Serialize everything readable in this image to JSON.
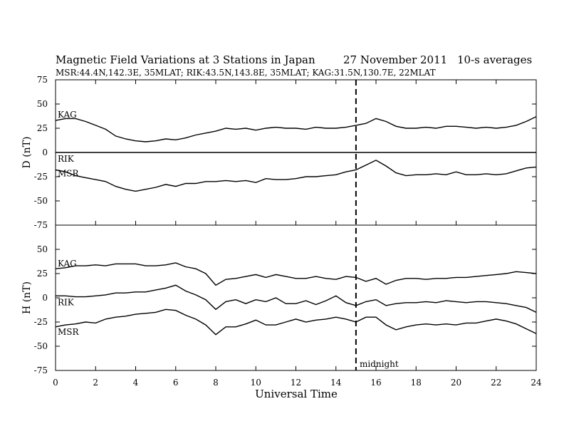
{
  "chart_data": {
    "type": "line",
    "title": "Magnetic Field Variations at 3 Stations in Japan",
    "date": "27 November 2011",
    "averaging": "10-s averages",
    "subtitle": "MSR:44.4N,142.3E, 35MLAT;  RIK:43.5N,143.8E, 35MLAT;  KAG:31.5N,130.7E, 22MLAT",
    "xlabel": "Universal Time",
    "xlim": [
      0,
      24
    ],
    "xticks": [
      0,
      2,
      4,
      6,
      8,
      10,
      12,
      14,
      16,
      18,
      20,
      22,
      24
    ],
    "marker": {
      "x": 15,
      "label": "midnight"
    },
    "panels": [
      {
        "ylabel": "D (nT)",
        "ylim": [
          -75,
          75
        ],
        "yticks": [
          -75,
          -50,
          -25,
          0,
          25,
          50,
          75
        ],
        "series": [
          {
            "name": "KAG",
            "x": [
              0,
              0.5,
              1,
              1.5,
              2,
              2.5,
              3,
              3.5,
              4,
              4.5,
              5,
              5.5,
              6,
              6.5,
              7,
              7.5,
              8,
              8.5,
              9,
              9.5,
              10,
              10.5,
              11,
              11.5,
              12,
              12.5,
              13,
              13.5,
              14,
              14.5,
              15,
              15.5,
              16,
              16.5,
              17,
              17.5,
              18,
              18.5,
              19,
              19.5,
              20,
              20.5,
              21,
              21.5,
              22,
              22.5,
              23,
              23.5,
              24
            ],
            "values": [
              33,
              35,
              35,
              32,
              28,
              24,
              17,
              14,
              12,
              11,
              12,
              14,
              13,
              15,
              18,
              20,
              22,
              25,
              24,
              25,
              23,
              25,
              26,
              25,
              25,
              24,
              26,
              25,
              25,
              26,
              28,
              30,
              35,
              32,
              27,
              25,
              25,
              26,
              25,
              27,
              27,
              26,
              25,
              26,
              25,
              26,
              28,
              32,
              37
            ]
          },
          {
            "name": "RIK",
            "x": [
              0,
              24
            ],
            "values": [
              0,
              0
            ]
          },
          {
            "name": "MSR",
            "x": [
              0,
              0.5,
              1,
              1.5,
              2,
              2.5,
              3,
              3.5,
              4,
              4.5,
              5,
              5.5,
              6,
              6.5,
              7,
              7.5,
              8,
              8.5,
              9,
              9.5,
              10,
              10.5,
              11,
              11.5,
              12,
              12.5,
              13,
              13.5,
              14,
              14.5,
              15,
              15.5,
              16,
              16.5,
              17,
              17.5,
              18,
              18.5,
              19,
              19.5,
              20,
              20.5,
              21,
              21.5,
              22,
              22.5,
              23,
              23.5,
              24
            ],
            "values": [
              -18,
              -20,
              -24,
              -26,
              -28,
              -30,
              -35,
              -38,
              -40,
              -38,
              -36,
              -33,
              -35,
              -32,
              -32,
              -30,
              -30,
              -29,
              -30,
              -29,
              -31,
              -27,
              -28,
              -28,
              -27,
              -25,
              -25,
              -24,
              -23,
              -20,
              -18,
              -13,
              -8,
              -14,
              -21,
              -24,
              -23,
              -23,
              -22,
              -23,
              -20,
              -23,
              -23,
              -22,
              -23,
              -22,
              -19,
              -16,
              -15
            ]
          }
        ]
      },
      {
        "ylabel": "H (nT)",
        "ylim": [
          -75,
          75
        ],
        "yticks": [
          -75,
          -50,
          -25,
          0,
          25,
          50,
          75
        ],
        "series": [
          {
            "name": "KAG",
            "x": [
              0,
              0.5,
              1,
              1.5,
              2,
              2.5,
              3,
              3.5,
              4,
              4.5,
              5,
              5.5,
              6,
              6.5,
              7,
              7.5,
              8,
              8.5,
              9,
              9.5,
              10,
              10.5,
              11,
              11.5,
              12,
              12.5,
              13,
              13.5,
              14,
              14.5,
              15,
              15.5,
              16,
              16.5,
              17,
              17.5,
              18,
              18.5,
              19,
              19.5,
              20,
              20.5,
              21,
              21.5,
              22,
              22.5,
              23,
              23.5,
              24
            ],
            "values": [
              30,
              31,
              33,
              33,
              34,
              33,
              35,
              35,
              35,
              33,
              33,
              34,
              36,
              32,
              30,
              25,
              13,
              19,
              20,
              22,
              24,
              21,
              24,
              22,
              20,
              20,
              22,
              20,
              19,
              22,
              21,
              17,
              20,
              14,
              18,
              20,
              20,
              19,
              20,
              20,
              21,
              21,
              22,
              23,
              24,
              25,
              27,
              26,
              25
            ]
          },
          {
            "name": "RIK",
            "x": [
              0,
              0.5,
              1,
              1.5,
              2,
              2.5,
              3,
              3.5,
              4,
              4.5,
              5,
              5.5,
              6,
              6.5,
              7,
              7.5,
              8,
              8.5,
              9,
              9.5,
              10,
              10.5,
              11,
              11.5,
              12,
              12.5,
              13,
              13.5,
              14,
              14.5,
              15,
              15.5,
              16,
              16.5,
              17,
              17.5,
              18,
              18.5,
              19,
              19.5,
              20,
              20.5,
              21,
              21.5,
              22,
              22.5,
              23,
              23.5,
              24
            ],
            "values": [
              2,
              2,
              1,
              1,
              2,
              3,
              5,
              5,
              6,
              6,
              8,
              10,
              13,
              7,
              3,
              -2,
              -12,
              -4,
              -2,
              -6,
              -2,
              -4,
              0,
              -6,
              -6,
              -3,
              -7,
              -3,
              2,
              -5,
              -8,
              -4,
              -2,
              -8,
              -6,
              -5,
              -5,
              -4,
              -5,
              -3,
              -4,
              -5,
              -4,
              -4,
              -5,
              -6,
              -8,
              -10,
              -15
            ]
          },
          {
            "name": "MSR",
            "x": [
              0,
              0.5,
              1,
              1.5,
              2,
              2.5,
              3,
              3.5,
              4,
              4.5,
              5,
              5.5,
              6,
              6.5,
              7,
              7.5,
              8,
              8.5,
              9,
              9.5,
              10,
              10.5,
              11,
              11.5,
              12,
              12.5,
              13,
              13.5,
              14,
              14.5,
              15,
              15.5,
              16,
              16.5,
              17,
              17.5,
              18,
              18.5,
              19,
              19.5,
              20,
              20.5,
              21,
              21.5,
              22,
              22.5,
              23,
              23.5,
              24
            ],
            "values": [
              -30,
              -28,
              -27,
              -25,
              -26,
              -22,
              -20,
              -19,
              -17,
              -16,
              -15,
              -12,
              -13,
              -18,
              -22,
              -28,
              -38,
              -30,
              -30,
              -27,
              -23,
              -28,
              -28,
              -25,
              -22,
              -25,
              -23,
              -22,
              -20,
              -22,
              -25,
              -20,
              -20,
              -28,
              -33,
              -30,
              -28,
              -27,
              -28,
              -27,
              -28,
              -26,
              -26,
              -24,
              -22,
              -24,
              -27,
              -32,
              -37
            ]
          }
        ]
      }
    ]
  }
}
